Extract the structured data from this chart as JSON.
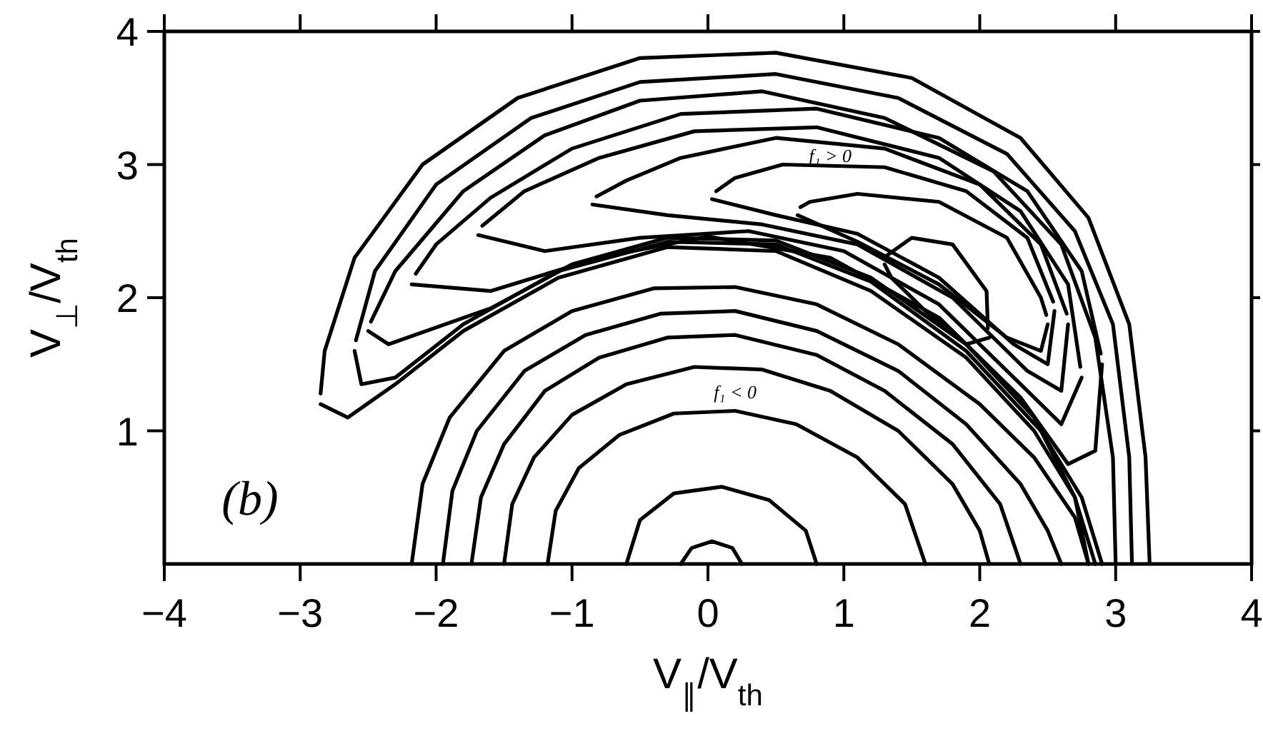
{
  "chart_data": {
    "type": "line",
    "xlabel": "V$_{∥}$/V$_{th}$",
    "ylabel": "V$_{⊥}$/V$_{th}$",
    "xlim": [
      -4,
      4
    ],
    "ylim": [
      0,
      4
    ],
    "xticks": [
      -4,
      -3,
      -2,
      -1,
      0,
      1,
      2,
      3,
      4
    ],
    "yticks": [
      1,
      2,
      3,
      4
    ],
    "annotations": [
      "(b)",
      "f₁ > 0",
      "f₁ < 0"
    ],
    "series": [
      {
        "color": "#000000",
        "x": [
          -2.18,
          -2.1,
          -1.9,
          -1.5,
          -1.0,
          -0.4,
          0.2,
          0.8,
          1.4,
          2.0,
          2.4,
          2.7,
          2.8
        ],
        "values": [
          0,
          0.6,
          1.1,
          1.6,
          1.9,
          2.07,
          2.08,
          1.95,
          1.65,
          1.2,
          0.8,
          0.35,
          0
        ]
      },
      {
        "color": "#000000",
        "x": [
          -1.95,
          -1.88,
          -1.7,
          -1.35,
          -0.9,
          -0.35,
          0.2,
          0.8,
          1.4,
          1.9,
          2.3,
          2.5,
          2.6
        ],
        "values": [
          0,
          0.55,
          1.0,
          1.45,
          1.72,
          1.88,
          1.9,
          1.75,
          1.45,
          1.05,
          0.6,
          0.25,
          0
        ]
      },
      {
        "color": "#000000",
        "x": [
          -1.74,
          -1.67,
          -1.5,
          -1.2,
          -0.8,
          -0.3,
          0.2,
          0.8,
          1.3,
          1.8,
          2.15,
          2.3
        ],
        "values": [
          0,
          0.5,
          0.9,
          1.3,
          1.55,
          1.7,
          1.72,
          1.57,
          1.3,
          0.9,
          0.45,
          0
        ]
      },
      {
        "color": "#000000",
        "x": [
          -1.5,
          -1.44,
          -1.28,
          -1.0,
          -0.6,
          -0.1,
          0.4,
          0.9,
          1.4,
          1.8,
          2.0,
          2.07
        ],
        "values": [
          0,
          0.45,
          0.8,
          1.12,
          1.35,
          1.48,
          1.46,
          1.3,
          1.0,
          0.6,
          0.25,
          0
        ]
      },
      {
        "color": "#000000",
        "x": [
          -1.18,
          -1.12,
          -0.95,
          -0.65,
          -0.25,
          0.2,
          0.65,
          1.1,
          1.45,
          1.6
        ],
        "values": [
          0,
          0.4,
          0.72,
          0.97,
          1.13,
          1.15,
          1.05,
          0.8,
          0.45,
          0
        ]
      },
      {
        "color": "#000000",
        "x": [
          -0.6,
          -0.5,
          -0.25,
          0.1,
          0.45,
          0.72,
          0.8
        ],
        "values": [
          0,
          0.33,
          0.53,
          0.58,
          0.48,
          0.25,
          0
        ]
      },
      {
        "color": "#000000",
        "x": [
          -0.2,
          -0.12,
          0.03,
          0.18,
          0.25
        ],
        "values": [
          0,
          0.12,
          0.17,
          0.12,
          0
        ]
      },
      {
        "color": "#000000",
        "x": [
          -2.85,
          -2.82,
          -2.6,
          -2.1,
          -1.4,
          -0.5,
          0.5,
          1.5,
          2.3,
          2.8,
          3.1,
          3.22,
          3.25
        ],
        "values": [
          1.28,
          1.6,
          2.3,
          3.0,
          3.5,
          3.8,
          3.84,
          3.65,
          3.2,
          2.6,
          1.8,
          0.8,
          0
        ]
      },
      {
        "color": "#000000",
        "x": [
          -2.85,
          -2.65,
          -2.3,
          -1.8,
          -1.1,
          -0.3,
          0.5,
          1.2,
          1.9,
          2.4,
          2.7,
          2.85
        ],
        "values": [
          1.2,
          1.1,
          1.35,
          1.75,
          2.15,
          2.38,
          2.35,
          2.05,
          1.55,
          1.0,
          0.5,
          0
        ]
      },
      {
        "color": "#000000",
        "x": [
          -2.59,
          -2.45,
          -2.0,
          -1.3,
          -0.5,
          0.5,
          1.4,
          2.2,
          2.7,
          2.98,
          3.1,
          3.12
        ],
        "values": [
          1.68,
          2.2,
          2.85,
          3.35,
          3.62,
          3.68,
          3.5,
          3.08,
          2.5,
          1.8,
          0.8,
          0
        ]
      },
      {
        "color": "#000000",
        "x": [
          -2.6,
          -2.55,
          -2.3,
          -1.8,
          -1.1,
          -0.3,
          0.5,
          1.2,
          1.9,
          2.45,
          2.75,
          2.9
        ],
        "values": [
          1.6,
          1.35,
          1.4,
          1.8,
          2.2,
          2.42,
          2.4,
          2.12,
          1.6,
          1.0,
          0.5,
          0
        ]
      },
      {
        "color": "#000000",
        "x": [
          -2.48,
          -2.3,
          -1.8,
          -1.2,
          -0.5,
          0.4,
          1.3,
          2.1,
          2.6,
          2.85,
          2.98,
          3.0
        ],
        "values": [
          1.82,
          2.2,
          2.8,
          3.22,
          3.48,
          3.55,
          3.35,
          2.95,
          2.4,
          1.7,
          0.8,
          0
        ]
      },
      {
        "color": "#000000",
        "x": [
          -2.5,
          -2.35,
          -1.6,
          -1.0,
          -0.3,
          0.5,
          1.2,
          1.9,
          2.4,
          2.7,
          2.8
        ],
        "values": [
          1.75,
          1.65,
          1.92,
          2.25,
          2.45,
          2.43,
          2.15,
          1.65,
          1.1,
          0.5,
          0
        ]
      },
      {
        "color": "#000000",
        "x": [
          -2.18,
          -1.6,
          -0.8,
          0,
          0.9,
          1.7,
          2.3,
          2.65,
          2.85,
          2.9
        ],
        "values": [
          2.1,
          2.05,
          2.3,
          2.46,
          2.3,
          1.85,
          1.25,
          0.75,
          0.85,
          1.5
        ]
      },
      {
        "color": "#000000",
        "x": [
          -2.15,
          -2.0,
          -1.6,
          -1.0,
          -0.2,
          0.8,
          1.7,
          2.35,
          2.75,
          2.89
        ],
        "values": [
          2.18,
          2.4,
          2.75,
          3.12,
          3.38,
          3.42,
          3.2,
          2.8,
          2.2,
          1.58
        ]
      },
      {
        "color": "#000000",
        "x": [
          -1.69,
          -1.2,
          -0.5,
          0.3,
          1.0,
          1.7,
          2.3,
          2.6,
          2.75
        ],
        "values": [
          2.47,
          2.35,
          2.45,
          2.5,
          2.35,
          1.95,
          1.35,
          1.05,
          1.4
        ]
      },
      {
        "color": "#000000",
        "x": [
          -1.66,
          -1.35,
          -0.8,
          -0.1,
          0.8,
          1.7,
          2.3,
          2.65,
          2.74
        ],
        "values": [
          2.54,
          2.8,
          3.05,
          3.25,
          3.28,
          3.05,
          2.65,
          2.1,
          1.48
        ]
      },
      {
        "color": "#000000",
        "x": [
          -0.85,
          -0.3,
          0.4,
          1.1,
          1.8,
          2.35,
          2.6,
          2.65
        ],
        "values": [
          2.7,
          2.62,
          2.55,
          2.4,
          2.0,
          1.45,
          1.3,
          1.8
        ]
      },
      {
        "color": "#000000",
        "x": [
          -0.82,
          -0.6,
          -0.2,
          0.5,
          1.3,
          2.0,
          2.45,
          2.64
        ],
        "values": [
          2.76,
          2.88,
          3.05,
          3.2,
          3.12,
          2.85,
          2.4,
          1.88
        ]
      },
      {
        "color": "#000000",
        "x": [
          0.03,
          0.5,
          1.1,
          1.7,
          2.25,
          2.5,
          2.55
        ],
        "values": [
          2.74,
          2.62,
          2.48,
          2.15,
          1.65,
          1.5,
          1.9
        ]
      },
      {
        "color": "#000000",
        "x": [
          0.06,
          0.2,
          0.55,
          1.3,
          1.9,
          2.35,
          2.54
        ],
        "values": [
          2.8,
          2.9,
          3.0,
          2.98,
          2.8,
          2.45,
          1.97
        ]
      },
      {
        "color": "#000000",
        "x": [
          0.66,
          1.1,
          1.7,
          2.2,
          2.45,
          2.5
        ],
        "values": [
          2.62,
          2.42,
          2.1,
          1.7,
          1.6,
          1.8
        ]
      },
      {
        "color": "#000000",
        "x": [
          0.68,
          0.75,
          1.1,
          1.7,
          2.2,
          2.45,
          2.49
        ],
        "values": [
          2.68,
          2.72,
          2.78,
          2.72,
          2.45,
          2.0,
          1.87
        ]
      },
      {
        "color": "#000000",
        "x": [
          1.3,
          1.35,
          1.6,
          1.9,
          2.07
        ],
        "values": [
          2.25,
          2.15,
          1.9,
          1.65,
          1.7
        ]
      },
      {
        "color": "#000000",
        "x": [
          1.32,
          1.5,
          1.8,
          2.05,
          2.06
        ],
        "values": [
          2.32,
          2.45,
          2.4,
          2.05,
          1.77
        ]
      }
    ]
  }
}
